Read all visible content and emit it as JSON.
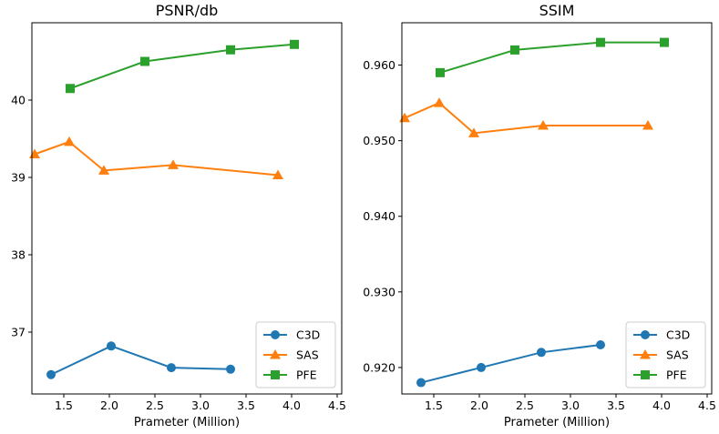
{
  "chart_data": [
    {
      "type": "line",
      "title": "PSNR/db",
      "xlabel": "Prameter (Million)",
      "ylabel": "",
      "xlim": [
        1.15,
        4.55
      ],
      "ylim": [
        36.2,
        41.0
      ],
      "xticks": [
        "1.5",
        "2.0",
        "2.5",
        "3.0",
        "3.5",
        "4.0",
        "4.5"
      ],
      "yticks": [
        "37",
        "38",
        "39",
        "40"
      ],
      "grid": false,
      "legend": "lower-right",
      "series": [
        {
          "name": "C3D",
          "color": "#1f77b4",
          "marker": "circle",
          "x": [
            1.36,
            2.02,
            2.68,
            3.33
          ],
          "y": [
            36.45,
            36.82,
            36.54,
            36.52
          ]
        },
        {
          "name": "SAS",
          "color": "#ff7f0e",
          "marker": "triangle",
          "x": [
            1.18,
            1.56,
            1.94,
            2.7,
            3.85
          ],
          "y": [
            39.3,
            39.46,
            39.09,
            39.16,
            39.03
          ]
        },
        {
          "name": "PFE",
          "color": "#2ca02c",
          "marker": "square",
          "x": [
            1.57,
            2.39,
            3.33,
            4.03
          ],
          "y": [
            40.15,
            40.5,
            40.65,
            40.72
          ]
        }
      ]
    },
    {
      "type": "line",
      "title": "SSIM",
      "xlabel": "Prameter (Million)",
      "ylabel": "",
      "xlim": [
        1.15,
        4.55
      ],
      "ylim": [
        0.9165,
        0.9656
      ],
      "xticks": [
        "1.5",
        "2.0",
        "2.5",
        "3.0",
        "3.5",
        "4.0",
        "4.5"
      ],
      "yticks": [
        "0.920",
        "0.930",
        "0.940",
        "0.950",
        "0.960"
      ],
      "grid": false,
      "legend": "lower-right",
      "series": [
        {
          "name": "C3D",
          "color": "#1f77b4",
          "marker": "circle",
          "x": [
            1.36,
            2.02,
            2.68,
            3.33
          ],
          "y": [
            0.918,
            0.92,
            0.922,
            0.923
          ]
        },
        {
          "name": "SAS",
          "color": "#ff7f0e",
          "marker": "triangle",
          "x": [
            1.18,
            1.56,
            1.94,
            2.7,
            3.85
          ],
          "y": [
            0.953,
            0.955,
            0.951,
            0.952,
            0.952
          ]
        },
        {
          "name": "PFE",
          "color": "#2ca02c",
          "marker": "square",
          "x": [
            1.57,
            2.39,
            3.33,
            4.03
          ],
          "y": [
            0.959,
            0.962,
            0.963,
            0.963
          ]
        }
      ]
    }
  ]
}
